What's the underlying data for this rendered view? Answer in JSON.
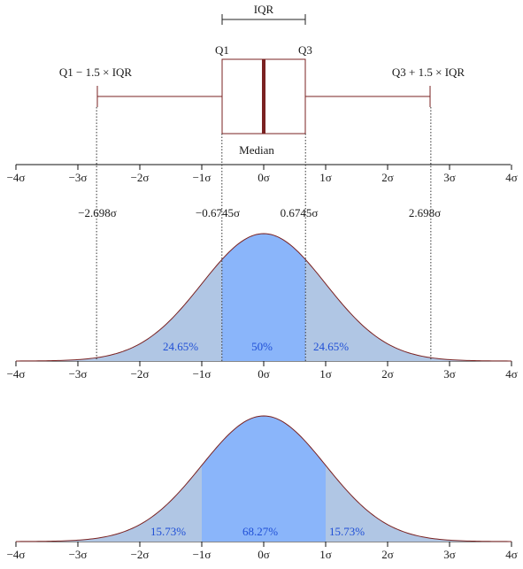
{
  "boxplot": {
    "iqr_label": "IQR",
    "q1_label": "Q1",
    "q3_label": "Q3",
    "lower_whisker_label": "Q1 − 1.5 × IQR",
    "upper_whisker_label": "Q3 + 1.5 × IQR",
    "median_label": "Median"
  },
  "axis": {
    "ticks": [
      -4,
      -3,
      -2,
      -1,
      0,
      1,
      2,
      3,
      4
    ],
    "tick_labels": [
      "−4σ",
      "−3σ",
      "−2σ",
      "−1σ",
      "0σ",
      "1σ",
      "2σ",
      "3σ",
      "4σ"
    ]
  },
  "quantiles": {
    "values": [
      -2.698,
      -0.6745,
      0.6745,
      2.698
    ],
    "labels": [
      "−2.698σ",
      "−0.6745σ",
      "0.6745σ",
      "2.698σ"
    ]
  },
  "panel2": {
    "shade_bounds": [
      -2.698,
      -0.6745,
      0.6745,
      2.698
    ],
    "percent_labels": [
      "24.65%",
      "50%",
      "24.65%"
    ]
  },
  "panel3": {
    "shade_bounds": [
      -1,
      1
    ],
    "percent_labels": [
      "15.73%",
      "68.27%",
      "15.73%"
    ]
  },
  "colors": {
    "curve": "#7a2222",
    "inner_fill": "#8ab5fa",
    "outer_fill": "#b0c6e4",
    "percent_text": "#1f4fd6",
    "box": "#7a2222"
  }
}
